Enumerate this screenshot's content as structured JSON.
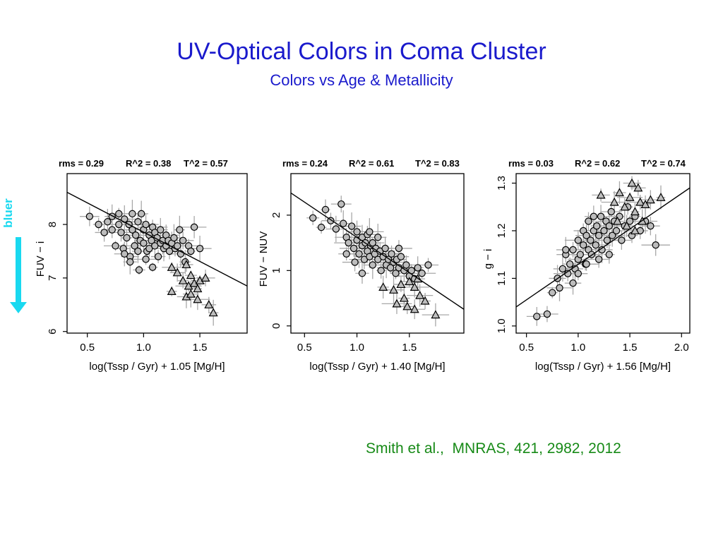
{
  "slide": {
    "title": "UV-Optical Colors in Coma Cluster",
    "subtitle": "Colors vs Age & Metallicity",
    "citation": "Smith et al.,  MNRAS, 421, 2982, 2012",
    "bluer_label": "bluer",
    "bluer_color": "#19d9f0",
    "title_color": "#1a1acc",
    "citation_color": "#178a17"
  },
  "chart_data": [
    {
      "type": "scatter",
      "stats": {
        "rms": "rms = 0.29",
        "r2": "R^2 = 0.38",
        "t2": "T^2 = 0.57"
      },
      "xlabel": "log(Tssp / Gyr) + 1.05 [Mg/H]",
      "ylabel": "FUV − i",
      "xlim": [
        0.32,
        1.92
      ],
      "ylim": [
        5.97,
        8.95
      ],
      "xticks": [
        0.5,
        1.0,
        1.5
      ],
      "xtick_labels": [
        "0.5",
        "1.0",
        "1.5"
      ],
      "yticks": [
        6,
        7,
        8
      ],
      "ytick_labels": [
        "6",
        "7",
        "8"
      ],
      "fit_line": [
        [
          0.32,
          8.6
        ],
        [
          1.92,
          6.85
        ]
      ],
      "series": [
        {
          "marker": "circle",
          "points": [
            [
              0.52,
              8.15
            ],
            [
              0.6,
              8.0
            ],
            [
              0.65,
              7.85
            ],
            [
              0.68,
              8.05
            ],
            [
              0.72,
              7.9
            ],
            [
              0.72,
              8.15
            ],
            [
              0.75,
              7.6
            ],
            [
              0.78,
              8.0
            ],
            [
              0.78,
              8.2
            ],
            [
              0.8,
              7.85
            ],
            [
              0.82,
              7.55
            ],
            [
              0.83,
              8.1
            ],
            [
              0.85,
              7.75
            ],
            [
              0.87,
              8.0
            ],
            [
              0.88,
              7.4
            ],
            [
              0.9,
              7.9
            ],
            [
              0.9,
              8.2
            ],
            [
              0.92,
              7.6
            ],
            [
              0.93,
              7.8
            ],
            [
              0.95,
              7.5
            ],
            [
              0.95,
              8.05
            ],
            [
              0.97,
              7.7
            ],
            [
              0.98,
              8.2
            ],
            [
              1.0,
              7.65
            ],
            [
              1.0,
              7.9
            ],
            [
              1.02,
              8.0
            ],
            [
              1.03,
              7.5
            ],
            [
              1.05,
              7.8
            ],
            [
              1.05,
              7.55
            ],
            [
              1.07,
              7.7
            ],
            [
              1.08,
              7.95
            ],
            [
              1.1,
              7.85
            ],
            [
              1.1,
              7.6
            ],
            [
              1.12,
              7.75
            ],
            [
              1.13,
              7.4
            ],
            [
              1.15,
              7.65
            ],
            [
              1.15,
              7.9
            ],
            [
              1.17,
              7.7
            ],
            [
              1.18,
              7.55
            ],
            [
              1.2,
              7.8
            ],
            [
              1.2,
              7.6
            ],
            [
              1.22,
              7.7
            ],
            [
              1.23,
              7.5
            ],
            [
              1.25,
              7.65
            ],
            [
              1.27,
              7.75
            ],
            [
              1.28,
              7.55
            ],
            [
              1.3,
              7.6
            ],
            [
              1.32,
              7.9
            ],
            [
              1.33,
              7.45
            ],
            [
              1.35,
              7.7
            ],
            [
              1.37,
              7.3
            ],
            [
              1.4,
              7.6
            ],
            [
              1.42,
              7.5
            ],
            [
              1.45,
              7.95
            ],
            [
              1.5,
              7.55
            ],
            [
              0.88,
              7.3
            ],
            [
              0.96,
              7.15
            ],
            [
              1.08,
              7.2
            ],
            [
              0.83,
              7.45
            ],
            [
              1.02,
              7.35
            ]
          ]
        },
        {
          "marker": "triangle",
          "points": [
            [
              1.25,
              7.2
            ],
            [
              1.3,
              7.1
            ],
            [
              1.35,
              6.95
            ],
            [
              1.38,
              7.25
            ],
            [
              1.4,
              6.85
            ],
            [
              1.42,
              7.05
            ],
            [
              1.45,
              6.9
            ],
            [
              1.5,
              6.95
            ],
            [
              1.55,
              7.0
            ],
            [
              1.48,
              6.8
            ],
            [
              1.38,
              6.65
            ],
            [
              1.42,
              6.7
            ],
            [
              1.48,
              6.6
            ],
            [
              1.58,
              6.5
            ],
            [
              1.62,
              6.35
            ],
            [
              1.25,
              6.75
            ]
          ]
        }
      ]
    },
    {
      "type": "scatter",
      "stats": {
        "rms": "rms = 0.24",
        "r2": "R^2 = 0.61",
        "t2": "T^2 = 0.83"
      },
      "xlabel": "log(Tssp / Gyr) + 1.40 [Mg/H]",
      "ylabel": "FUV − NUV",
      "xlim": [
        0.37,
        2.02
      ],
      "ylim": [
        -0.13,
        2.75
      ],
      "xticks": [
        0.5,
        1.0,
        1.5
      ],
      "xtick_labels": [
        "0.5",
        "1.0",
        "1.5"
      ],
      "yticks": [
        0,
        1,
        2
      ],
      "ytick_labels": [
        "0",
        "1",
        "2"
      ],
      "fit_line": [
        [
          0.37,
          2.4
        ],
        [
          2.02,
          0.3
        ]
      ],
      "series": [
        {
          "marker": "circle",
          "points": [
            [
              0.58,
              1.95
            ],
            [
              0.7,
              2.1
            ],
            [
              0.75,
              1.9
            ],
            [
              0.8,
              1.75
            ],
            [
              0.85,
              2.2
            ],
            [
              0.87,
              1.85
            ],
            [
              0.9,
              1.6
            ],
            [
              0.92,
              1.5
            ],
            [
              0.95,
              1.8
            ],
            [
              0.97,
              1.4
            ],
            [
              1.0,
              1.7
            ],
            [
              1.0,
              1.55
            ],
            [
              1.02,
              1.3
            ],
            [
              1.05,
              1.6
            ],
            [
              1.05,
              1.45
            ],
            [
              1.07,
              1.2
            ],
            [
              1.08,
              1.5
            ],
            [
              1.1,
              1.35
            ],
            [
              1.1,
              1.65
            ],
            [
              1.12,
              1.25
            ],
            [
              1.13,
              1.45
            ],
            [
              1.15,
              1.1
            ],
            [
              1.15,
              1.5
            ],
            [
              1.17,
              1.3
            ],
            [
              1.18,
              1.4
            ],
            [
              1.2,
              1.2
            ],
            [
              1.22,
              1.35
            ],
            [
              1.23,
              1.0
            ],
            [
              1.25,
              1.25
            ],
            [
              1.27,
              1.4
            ],
            [
              1.28,
              1.1
            ],
            [
              1.3,
              1.2
            ],
            [
              1.32,
              1.05
            ],
            [
              1.33,
              1.3
            ],
            [
              1.35,
              1.15
            ],
            [
              1.37,
              0.95
            ],
            [
              1.38,
              1.2
            ],
            [
              1.4,
              1.05
            ],
            [
              1.42,
              1.25
            ],
            [
              1.45,
              1.0
            ],
            [
              1.47,
              1.1
            ],
            [
              1.5,
              0.9
            ],
            [
              1.52,
              1.0
            ],
            [
              1.55,
              0.85
            ],
            [
              1.58,
              1.05
            ],
            [
              1.62,
              0.95
            ],
            [
              1.68,
              1.1
            ],
            [
              0.9,
              1.3
            ],
            [
              0.98,
              1.15
            ],
            [
              1.05,
              0.95
            ],
            [
              1.12,
              1.7
            ],
            [
              1.2,
              1.6
            ],
            [
              1.4,
              1.4
            ],
            [
              0.66,
              1.78
            ]
          ]
        },
        {
          "marker": "triangle",
          "points": [
            [
              1.25,
              0.7
            ],
            [
              1.35,
              0.65
            ],
            [
              1.42,
              0.75
            ],
            [
              1.5,
              0.8
            ],
            [
              1.55,
              0.7
            ],
            [
              1.6,
              0.55
            ],
            [
              1.58,
              0.85
            ],
            [
              1.45,
              0.5
            ],
            [
              1.38,
              0.4
            ],
            [
              1.48,
              0.35
            ],
            [
              1.55,
              0.3
            ],
            [
              1.65,
              0.45
            ],
            [
              1.75,
              0.2
            ]
          ]
        }
      ]
    },
    {
      "type": "scatter",
      "stats": {
        "rms": "rms = 0.03",
        "r2": "R^2 = 0.62",
        "t2": "T^2 = 0.74"
      },
      "xlabel": "log(Tssp / Gyr) + 1.56 [Mg/H]",
      "ylabel": "g − i",
      "xlim": [
        0.4,
        2.08
      ],
      "ylim": [
        0.985,
        1.32
      ],
      "xticks": [
        0.5,
        1.0,
        1.5,
        2.0
      ],
      "xtick_labels": [
        "0.5",
        "1.0",
        "1.5",
        "2.0"
      ],
      "yticks": [
        1.0,
        1.1,
        1.2,
        1.3
      ],
      "ytick_labels": [
        "1.0",
        "1.1",
        "1.2",
        "1.3"
      ],
      "fit_line": [
        [
          0.4,
          1.04
        ],
        [
          2.08,
          1.29
        ]
      ],
      "series": [
        {
          "marker": "circle",
          "points": [
            [
              0.6,
              1.02
            ],
            [
              0.7,
              1.025
            ],
            [
              0.75,
              1.07
            ],
            [
              0.8,
              1.1
            ],
            [
              0.82,
              1.08
            ],
            [
              0.85,
              1.12
            ],
            [
              0.88,
              1.15
            ],
            [
              0.9,
              1.11
            ],
            [
              0.92,
              1.13
            ],
            [
              0.95,
              1.16
            ],
            [
              0.97,
              1.12
            ],
            [
              1.0,
              1.18
            ],
            [
              1.0,
              1.14
            ],
            [
              1.02,
              1.15
            ],
            [
              1.05,
              1.2
            ],
            [
              1.05,
              1.17
            ],
            [
              1.07,
              1.13
            ],
            [
              1.08,
              1.19
            ],
            [
              1.1,
              1.16
            ],
            [
              1.1,
              1.22
            ],
            [
              1.12,
              1.18
            ],
            [
              1.13,
              1.15
            ],
            [
              1.15,
              1.2
            ],
            [
              1.15,
              1.23
            ],
            [
              1.17,
              1.17
            ],
            [
              1.18,
              1.21
            ],
            [
              1.2,
              1.19
            ],
            [
              1.22,
              1.23
            ],
            [
              1.23,
              1.16
            ],
            [
              1.25,
              1.2
            ],
            [
              1.27,
              1.22
            ],
            [
              1.28,
              1.18
            ],
            [
              1.3,
              1.21
            ],
            [
              1.32,
              1.24
            ],
            [
              1.33,
              1.19
            ],
            [
              1.35,
              1.22
            ],
            [
              1.37,
              1.2
            ],
            [
              1.4,
              1.23
            ],
            [
              1.42,
              1.18
            ],
            [
              1.45,
              1.21
            ],
            [
              1.48,
              1.25
            ],
            [
              1.5,
              1.22
            ],
            [
              1.52,
              1.19
            ],
            [
              1.55,
              1.23
            ],
            [
              1.6,
              1.2
            ],
            [
              1.65,
              1.22
            ],
            [
              1.7,
              1.21
            ],
            [
              1.75,
              1.17
            ],
            [
              0.95,
              1.09
            ],
            [
              1.0,
              1.11
            ],
            [
              1.08,
              1.13
            ],
            [
              1.2,
              1.14
            ],
            [
              0.88,
              1.16
            ],
            [
              1.3,
              1.15
            ]
          ]
        },
        {
          "marker": "triangle",
          "points": [
            [
              1.22,
              1.275
            ],
            [
              1.35,
              1.26
            ],
            [
              1.4,
              1.28
            ],
            [
              1.45,
              1.25
            ],
            [
              1.5,
              1.27
            ],
            [
              1.52,
              1.3
            ],
            [
              1.55,
              1.24
            ],
            [
              1.6,
              1.26
            ],
            [
              1.65,
              1.255
            ],
            [
              1.7,
              1.265
            ],
            [
              1.8,
              1.27
            ],
            [
              1.47,
              1.21
            ],
            [
              1.55,
              1.2
            ],
            [
              1.62,
              1.22
            ],
            [
              1.38,
              1.22
            ],
            [
              1.58,
              1.29
            ]
          ]
        }
      ]
    }
  ]
}
